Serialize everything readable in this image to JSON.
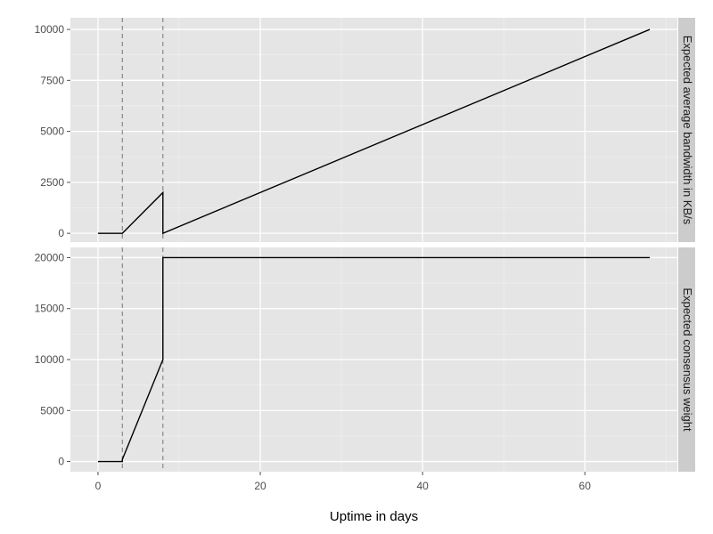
{
  "chart_data": {
    "type": "line",
    "facet": "vertical",
    "xlabel": "Uptime in days",
    "xlim": [
      -3.4,
      71.4
    ],
    "xticks": [
      0,
      20,
      40,
      60
    ],
    "x_minor_ticks": [
      10,
      30,
      50,
      70
    ],
    "vlines": [
      3,
      8
    ],
    "panels": [
      {
        "strip_label": "Expected average bandwidth in KB/s",
        "ylim": [
          -430,
          10570
        ],
        "yticks": [
          0,
          2500,
          5000,
          7500,
          10000
        ],
        "series": [
          {
            "x": [
              0,
              3,
              8,
              8,
              68
            ],
            "y": [
              0,
              0,
              2000,
              0,
              10000
            ]
          }
        ]
      },
      {
        "strip_label": "Expected consensus weight",
        "ylim": [
          -1000,
          21000
        ],
        "yticks": [
          0,
          5000,
          10000,
          15000,
          20000
        ],
        "series": [
          {
            "x": [
              0,
              3,
              3,
              8,
              8,
              68
            ],
            "y": [
              0,
              0,
              200,
              10000,
              20000,
              20000
            ]
          }
        ]
      }
    ]
  }
}
